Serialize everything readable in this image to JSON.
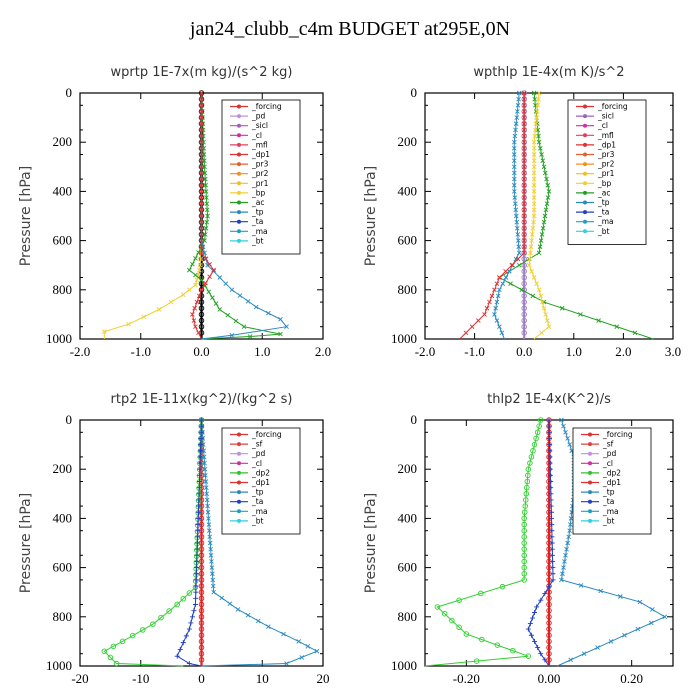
{
  "title": "jan24_clubb_c4m  BUDGET at295E,0N",
  "chart_data": [
    {
      "type": "line",
      "title": "wprtp  1E-7x(m kg)/(s^2 kg)",
      "ylabel": "Pressure [hPa]",
      "xlim": [
        -2.0,
        2.0
      ],
      "ylim": [
        1000,
        0
      ],
      "x_ticks": [
        "-2.0",
        "-1.0",
        "0.0",
        "1.0",
        "2.0"
      ],
      "y_ticks": [
        "0",
        "200",
        "400",
        "600",
        "800",
        "1000"
      ],
      "legend": [
        "_forcing",
        "_pd",
        "_sicl",
        "_cl",
        "_mfl",
        "_dp1",
        "_pr3",
        "_pr2",
        "_pr1",
        "_bp",
        "_ac",
        "_tp",
        "_ta",
        "_ma",
        "_bt"
      ],
      "series": [
        {
          "name": "_forcing",
          "color": "#000000",
          "marker": "o",
          "x": [
            0,
            0,
            0,
            0,
            0,
            0,
            0,
            0,
            0,
            0,
            0
          ],
          "y": [
            0,
            100,
            200,
            300,
            400,
            500,
            600,
            700,
            800,
            900,
            1000
          ]
        },
        {
          "name": "_bp",
          "color": "#f0d030",
          "marker": "x",
          "x": [
            0,
            0,
            0,
            -0.02,
            -0.05,
            -0.1,
            -0.3,
            -0.7,
            -1.2,
            -1.6,
            -1.6
          ],
          "y": [
            0,
            400,
            600,
            700,
            740,
            780,
            820,
            880,
            940,
            970,
            1000
          ]
        },
        {
          "name": "_ac",
          "color": "#22a022",
          "marker": "x",
          "x": [
            0,
            0.05,
            0.1,
            0.05,
            -0.2,
            0,
            0.3,
            0.7,
            1.3,
            0.8,
            0
          ],
          "y": [
            0,
            300,
            500,
            600,
            720,
            760,
            880,
            950,
            980,
            990,
            1000
          ]
        },
        {
          "name": "_tp",
          "color": "#2a8ac0",
          "marker": "x",
          "x": [
            0,
            0,
            0.1,
            0.5,
            0.9,
            1.3,
            1.4,
            0.5,
            0
          ],
          "y": [
            0,
            600,
            700,
            800,
            870,
            920,
            950,
            985,
            1000
          ]
        },
        {
          "name": "_dp1",
          "color": "#e03030",
          "marker": "x",
          "x": [
            0,
            0,
            0.2,
            0,
            -0.15,
            -0.1,
            0
          ],
          "y": [
            0,
            650,
            720,
            800,
            900,
            950,
            1000
          ]
        }
      ]
    },
    {
      "type": "line",
      "title": "wpthlp  1E-4x(m K)/s^2",
      "ylabel": "Pressure [hPa]",
      "xlim": [
        -2.0,
        3.0
      ],
      "ylim": [
        1000,
        0
      ],
      "x_ticks": [
        "-2.0",
        "-1.0",
        "0.0",
        "1.0",
        "2.0",
        "3.0"
      ],
      "y_ticks": [
        "0",
        "200",
        "400",
        "600",
        "800",
        "1000"
      ],
      "legend": [
        "_forcing",
        "_sicl",
        "_cl",
        "_mfl",
        "_dp1",
        "_pr3",
        "_pr2",
        "_pr1",
        "_bp",
        "_ac",
        "_tp",
        "_ta",
        "_ma",
        "_bt"
      ],
      "series": [
        {
          "name": "_forcing",
          "color": "#a080c0",
          "marker": "o",
          "x": [
            0,
            0,
            0,
            0,
            0,
            0,
            0
          ],
          "y": [
            0,
            200,
            400,
            600,
            800,
            900,
            1000
          ]
        },
        {
          "name": "_ac",
          "color": "#22a022",
          "marker": "x",
          "x": [
            0.2,
            0.3,
            0.5,
            0.3,
            -0.5,
            0.4,
            2.6
          ],
          "y": [
            0,
            200,
            400,
            650,
            750,
            850,
            1000
          ]
        },
        {
          "name": "_bp",
          "color": "#f0d030",
          "marker": "x",
          "x": [
            0.3,
            0.2,
            0.2,
            0.1,
            0.3,
            0.5,
            0.2
          ],
          "y": [
            0,
            200,
            500,
            700,
            800,
            950,
            1000
          ]
        },
        {
          "name": "_tp",
          "color": "#2a8ac0",
          "marker": "x",
          "x": [
            -0.1,
            -0.2,
            -0.2,
            -0.1,
            -0.5,
            -0.6,
            -0.4
          ],
          "y": [
            0,
            200,
            400,
            650,
            800,
            900,
            1000
          ]
        },
        {
          "name": "_dp1",
          "color": "#e03030",
          "marker": "x",
          "x": [
            0,
            0,
            -0.5,
            -0.8,
            -1.3
          ],
          "y": [
            0,
            650,
            750,
            900,
            1000
          ]
        }
      ]
    },
    {
      "type": "line",
      "title": "rtp2  1E-11x(kg^2)/(kg^2 s)",
      "ylabel": "Pressure [hPa]",
      "xlim": [
        -20,
        20
      ],
      "ylim": [
        1000,
        0
      ],
      "x_ticks": [
        "-20",
        "-10",
        "0",
        "10",
        "20"
      ],
      "y_ticks": [
        "0",
        "200",
        "400",
        "600",
        "800",
        "1000"
      ],
      "legend": [
        "_forcing",
        "_sf",
        "_pd",
        "_cl",
        "_dp2",
        "_dp1",
        "_tp",
        "_ta",
        "_ma",
        "_bt"
      ],
      "series": [
        {
          "name": "_forcing",
          "color": "#e02020",
          "marker": "o",
          "x": [
            0,
            0,
            0,
            0,
            0,
            0,
            0,
            0,
            0,
            0,
            0
          ],
          "y": [
            0,
            100,
            200,
            300,
            400,
            500,
            600,
            700,
            800,
            900,
            1000
          ]
        },
        {
          "name": "_dp1",
          "color": "#30d030",
          "marker": "o",
          "x": [
            0,
            -1,
            -4,
            -8,
            -13,
            -16,
            -14,
            -3
          ],
          "y": [
            0,
            680,
            750,
            830,
            900,
            940,
            990,
            1000
          ]
        },
        {
          "name": "_tp",
          "color": "#2a8ac0",
          "marker": "x",
          "x": [
            0,
            2,
            6,
            11,
            16,
            19,
            14,
            0
          ],
          "y": [
            0,
            700,
            770,
            840,
            900,
            940,
            990,
            1000
          ]
        },
        {
          "name": "_ta",
          "color": "#2040c0",
          "marker": "+",
          "x": [
            0,
            -1,
            -2,
            -4,
            -2,
            0
          ],
          "y": [
            0,
            750,
            850,
            960,
            990,
            1000
          ]
        }
      ]
    },
    {
      "type": "line",
      "title": "thlp2  1E-4x(K^2)/s",
      "ylabel": "Pressure [hPa]",
      "xlim": [
        -0.3,
        0.3
      ],
      "ylim": [
        1000,
        0
      ],
      "x_ticks": [
        "-0.20",
        "0.00",
        "0.20"
      ],
      "y_ticks": [
        "0",
        "200",
        "400",
        "600",
        "800",
        "1000"
      ],
      "legend": [
        "_forcing",
        "_sf",
        "_pd",
        "_cl",
        "_dp2",
        "_dp1",
        "_tp",
        "_ta",
        "_ma",
        "_bt"
      ],
      "series": [
        {
          "name": "_forcing",
          "color": "#e02020",
          "marker": "o",
          "x": [
            0,
            0,
            0,
            0,
            0,
            0,
            0,
            0,
            0,
            0,
            0
          ],
          "y": [
            0,
            100,
            200,
            300,
            400,
            500,
            600,
            700,
            800,
            900,
            1000
          ]
        },
        {
          "name": "_dp1",
          "color": "#30d030",
          "marker": "o",
          "x": [
            -0.02,
            -0.05,
            -0.06,
            -0.06,
            -0.27,
            -0.2,
            -0.05,
            -0.3
          ],
          "y": [
            0,
            200,
            400,
            650,
            760,
            870,
            960,
            1000
          ]
        },
        {
          "name": "_tp",
          "color": "#2a8ac0",
          "marker": "x",
          "x": [
            0.03,
            0.06,
            0.06,
            0.05,
            0.03,
            0.22,
            0.28,
            0.15,
            0.02
          ],
          "y": [
            0,
            150,
            300,
            450,
            650,
            740,
            800,
            900,
            1000
          ]
        },
        {
          "name": "_ta",
          "color": "#2040c0",
          "marker": "+",
          "x": [
            0,
            0.01,
            -0.03,
            -0.05,
            -0.02,
            0
          ],
          "y": [
            0,
            650,
            760,
            850,
            950,
            1000
          ]
        }
      ]
    }
  ]
}
